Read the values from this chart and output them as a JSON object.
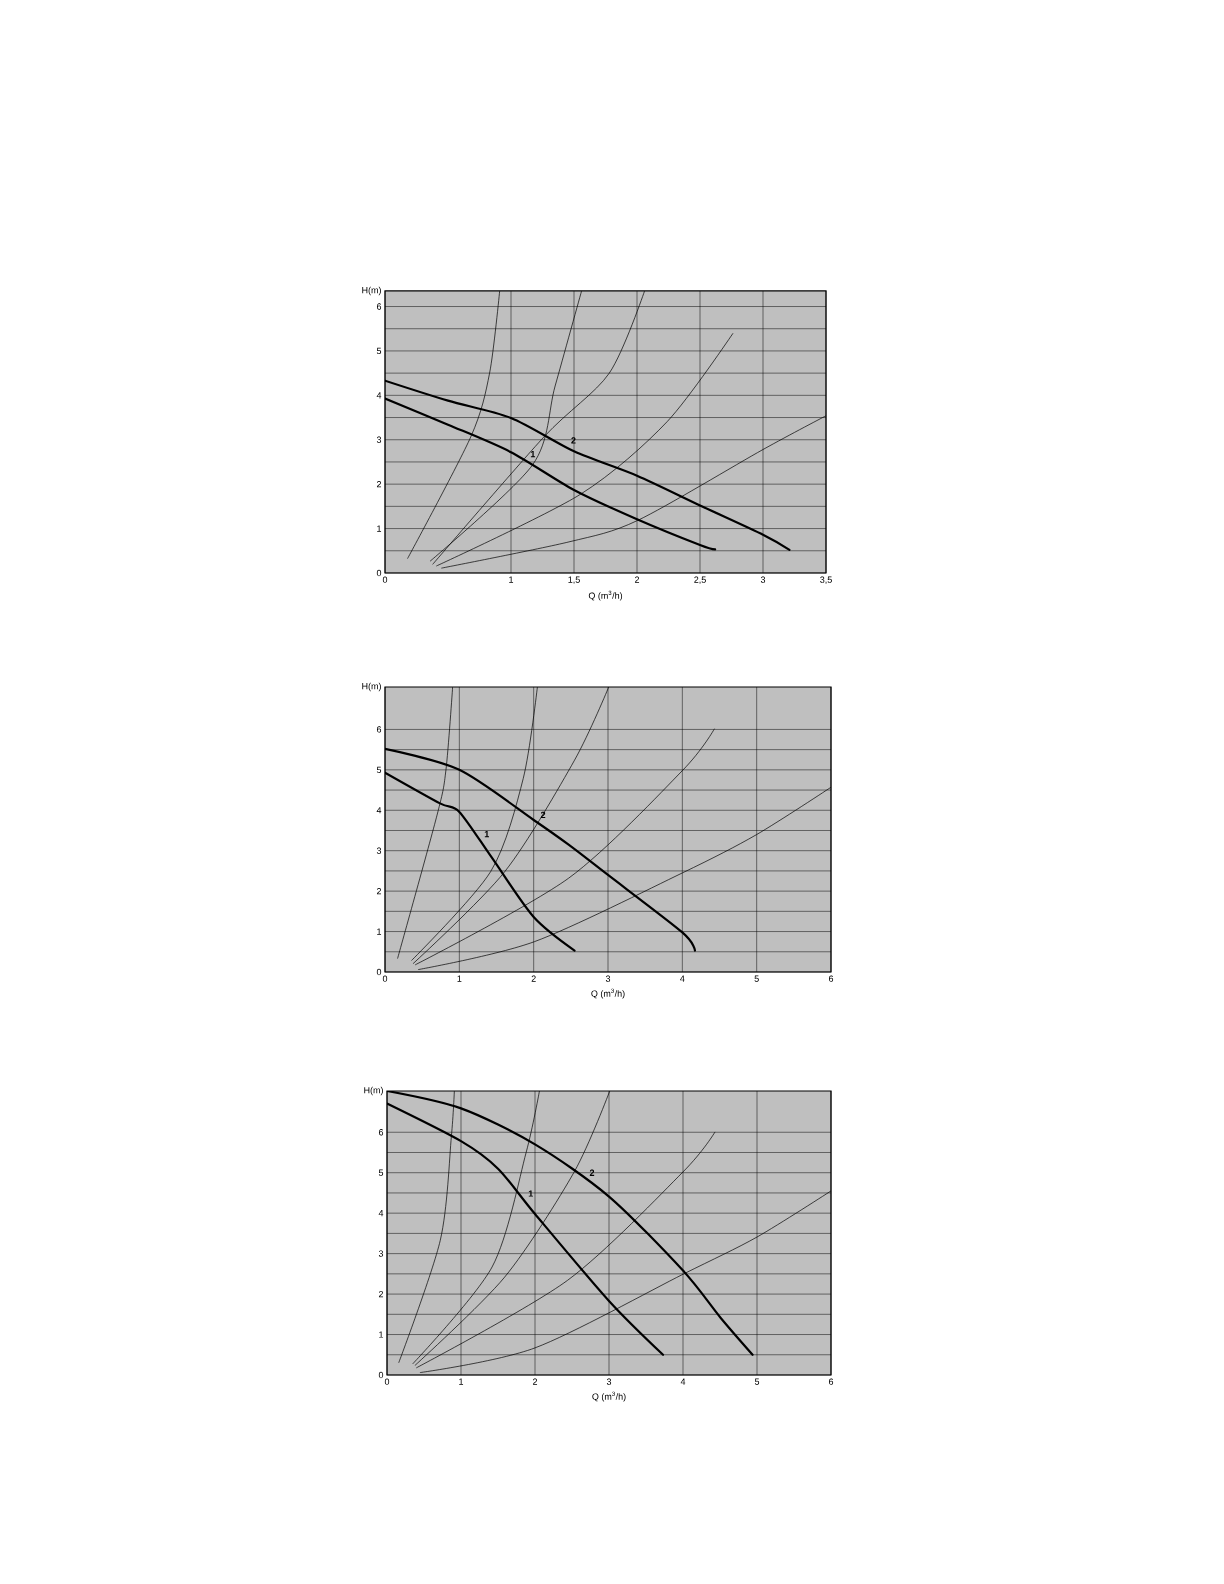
{
  "chart_data": [
    {
      "type": "line",
      "xlabel": "Q (m$^{3}$/h)",
      "ylabel": "H(m)",
      "xlim": [
        0,
        3.5
      ],
      "ylim": [
        0,
        6.35
      ],
      "xticks": [
        0,
        1,
        {
          "value": 1.5,
          "label": "1,5"
        },
        2,
        {
          "value": 2.5,
          "label": "2,5"
        },
        3,
        {
          "value": 3.5,
          "label": "3,5"
        }
      ],
      "yticks": [
        0,
        1,
        2,
        3,
        4,
        5,
        6
      ],
      "grid": true,
      "marker": "none",
      "series": [
        {
          "name": "1",
          "color": "#000000",
          "x": [
            0,
            0.5,
            1,
            1.5,
            2,
            2.5,
            2.62
          ],
          "values": [
            3.93,
            3.34,
            2.72,
            1.87,
            1.21,
            0.63,
            0.53
          ]
        },
        {
          "name": "2",
          "color": "#000000",
          "x": [
            0,
            0.5,
            1,
            1.5,
            2,
            2.5,
            3,
            3.21
          ],
          "values": [
            4.33,
            3.88,
            3.49,
            2.74,
            2.19,
            1.52,
            0.86,
            0.52
          ]
        },
        {
          "color": "#000000",
          "x": [
            0.18,
            0.68,
            0.83,
            0.91
          ],
          "values": [
            0.33,
            3.06,
            4.5,
            6.35
          ]
        },
        {
          "color": "#000000",
          "x": [
            0.36,
            1.17,
            1.35,
            1.56
          ],
          "values": [
            0.27,
            2.43,
            4.21,
            6.35
          ]
        },
        {
          "color": "#000000",
          "x": [
            0.38,
            1.26,
            1.78,
            2.06
          ],
          "values": [
            0.2,
            3.06,
            4.5,
            6.35
          ]
        },
        {
          "color": "#000000",
          "x": [
            0.41,
            1.55,
            2.24,
            2.76
          ],
          "values": [
            0.16,
            1.77,
            3.41,
            5.39
          ]
        },
        {
          "color": "#000000",
          "x": [
            0.45,
            1.46,
            2.01,
            3,
            3.5
          ],
          "values": [
            0.11,
            0.7,
            1.19,
            2.78,
            3.54
          ]
        }
      ]
    },
    {
      "type": "line",
      "xlabel": "Q (m$^{3}$/h)",
      "ylabel": "H(m)",
      "xlim": [
        0,
        6
      ],
      "ylim": [
        0,
        7.05
      ],
      "xticks": [
        0,
        1,
        2,
        3,
        4,
        5,
        6
      ],
      "yticks": [
        0,
        1,
        2,
        3,
        4,
        5,
        6
      ],
      "grid": true,
      "marker": "none",
      "series": [
        {
          "name": "1",
          "color": "#000000",
          "x": [
            0,
            0.74,
            1,
            1.44,
            2,
            2.55
          ],
          "values": [
            4.93,
            4.17,
            3.96,
            2.82,
            1.36,
            0.53
          ]
        },
        {
          "name": "2",
          "color": "#000000",
          "x": [
            0,
            1,
            2,
            2.47,
            3,
            4,
            4.17
          ],
          "values": [
            5.52,
            5.0,
            3.76,
            3.15,
            2.4,
            0.98,
            0.53
          ]
        },
        {
          "color": "#000000",
          "x": [
            0.17,
            0.7,
            0.82,
            0.91
          ],
          "values": [
            0.34,
            3.88,
            5.0,
            7.05
          ]
        },
        {
          "color": "#000000",
          "x": [
            0.36,
            1.42,
            1.86,
            2.05
          ],
          "values": [
            0.29,
            2.48,
            4.79,
            7.05
          ]
        },
        {
          "color": "#000000",
          "x": [
            0.38,
            1.61,
            2.55,
            3.01
          ],
          "values": [
            0.21,
            2.48,
            5.24,
            7.05
          ]
        },
        {
          "color": "#000000",
          "x": [
            0.41,
            2.47,
            4,
            4.43
          ],
          "values": [
            0.18,
            2.32,
            4.98,
            6.01
          ]
        },
        {
          "color": "#000000",
          "x": [
            0.45,
            2.01,
            4,
            5,
            6
          ],
          "values": [
            0.06,
            0.75,
            2.45,
            3.4,
            4.57
          ]
        }
      ]
    },
    {
      "type": "line",
      "xlabel": "Q (m$^{3}$/h)",
      "ylabel": "H(m)",
      "xlim": [
        0,
        6
      ],
      "ylim": [
        0,
        7.02
      ],
      "xticks": [
        0,
        1,
        2,
        3,
        4,
        5,
        6
      ],
      "yticks": [
        0,
        1,
        2,
        3,
        4,
        5,
        6
      ],
      "grid": true,
      "marker": "none",
      "series": [
        {
          "name": "1",
          "color": "#000000",
          "x": [
            0,
            1,
            1.5,
            2,
            3,
            3.73
          ],
          "values": [
            6.71,
            5.78,
            5.1,
            3.98,
            1.83,
            0.5
          ]
        },
        {
          "name": "2",
          "color": "#000000",
          "x": [
            0,
            1,
            2,
            3,
            4,
            4.51,
            4.94
          ],
          "values": [
            7.02,
            6.59,
            5.7,
            4.41,
            2.58,
            1.41,
            0.5
          ]
        },
        {
          "color": "#000000",
          "x": [
            0.16,
            0.72,
            0.87,
            0.91
          ],
          "values": [
            0.31,
            3.33,
            5.9,
            7.02
          ]
        },
        {
          "color": "#000000",
          "x": [
            0.35,
            1.42,
            1.88,
            2.06
          ],
          "values": [
            0.28,
            2.67,
            5.5,
            7.02
          ]
        },
        {
          "color": "#000000",
          "x": [
            0.38,
            1.59,
            2.53,
            3.01
          ],
          "values": [
            0.24,
            2.42,
            5.02,
            7.02
          ]
        },
        {
          "color": "#000000",
          "x": [
            0.4,
            2.44,
            4,
            4.43
          ],
          "values": [
            0.18,
            2.34,
            5.02,
            6.0
          ]
        },
        {
          "color": "#000000",
          "x": [
            0.45,
            2,
            4,
            5,
            6
          ],
          "values": [
            0.06,
            0.67,
            2.49,
            3.41,
            4.55
          ]
        }
      ]
    }
  ]
}
